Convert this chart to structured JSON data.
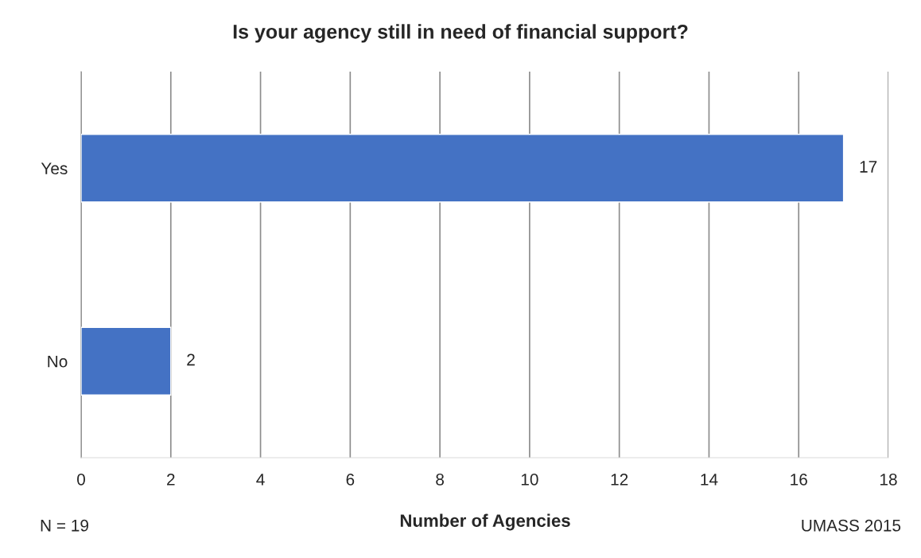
{
  "chart_data": {
    "type": "bar",
    "orientation": "horizontal",
    "title": "Is your agency still in need of financial support?",
    "categories": [
      "Yes",
      "No"
    ],
    "values": [
      17,
      2
    ],
    "color": "#4472c4",
    "xlabel": "Number of Agencies",
    "xlim": [
      0,
      18
    ],
    "xticks": [
      0,
      2,
      4,
      6,
      8,
      10,
      12,
      14,
      16,
      18
    ],
    "grid": "x",
    "data_labels": true,
    "annotations": [
      "N = 19",
      "UMASS 2015"
    ]
  }
}
